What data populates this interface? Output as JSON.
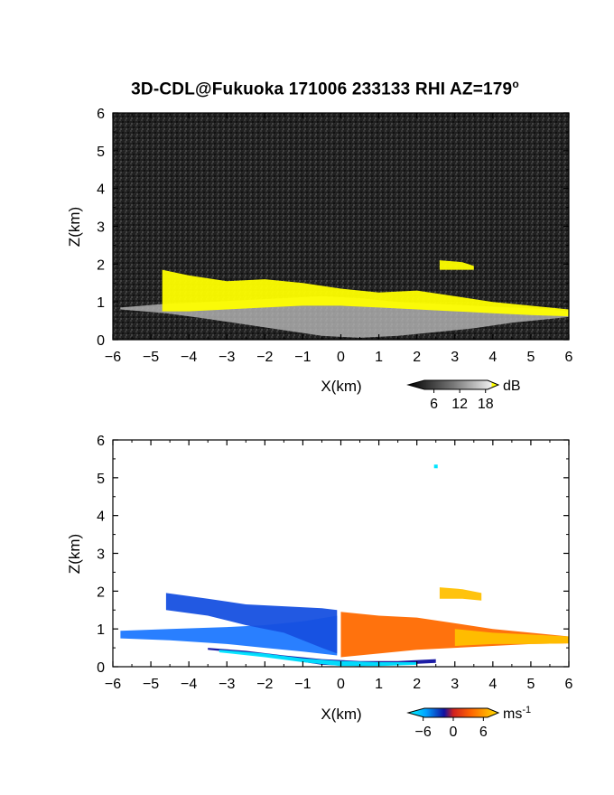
{
  "title": {
    "text": "3D-CDL@Fukuoka 171006 233133 RHI AZ=179",
    "superscript": "o"
  },
  "chart_data": [
    {
      "type": "heatmap",
      "panel": "reflectivity",
      "xlabel": "X(km)",
      "ylabel": "Z(km)",
      "xlim": [
        -6,
        6
      ],
      "ylim": [
        0,
        6
      ],
      "x_ticks": [
        -6,
        -5,
        -4,
        -3,
        -2,
        -1,
        0,
        1,
        2,
        3,
        4,
        5,
        6
      ],
      "y_ticks": [
        0,
        1,
        2,
        3,
        4,
        5,
        6
      ],
      "colorbar": {
        "unit": "dB",
        "ticks": [
          6,
          12,
          18
        ],
        "range": [
          0,
          21
        ],
        "colors": [
          "#1a1a1a",
          "#555555",
          "#999999",
          "#dddddd",
          "#ffff00"
        ]
      },
      "layers": [
        {
          "x": [
            -5.8,
            -4.6,
            -3.5,
            -2.5,
            -1.5,
            -0.5,
            0.5,
            1.5,
            2.5,
            3.5,
            4.5,
            5.5,
            6.0
          ],
          "z_bottom": [
            0.8,
            0.7,
            0.55,
            0.4,
            0.25,
            0.1,
            0.05,
            0.1,
            0.2,
            0.3,
            0.45,
            0.55,
            0.6
          ],
          "z_top": [
            0.85,
            0.95,
            1.0,
            1.05,
            1.1,
            1.15,
            1.1,
            1.0,
            0.95,
            0.9,
            0.85,
            0.8,
            0.75
          ],
          "value": 12
        },
        {
          "x": [
            -4.7,
            -4.0,
            -3.0,
            -2.0,
            -1.0,
            0.0,
            1.0,
            2.0,
            3.0,
            4.0,
            5.0,
            6.0
          ],
          "z_bottom": [
            0.75,
            0.75,
            0.8,
            0.85,
            0.9,
            0.9,
            0.85,
            0.8,
            0.75,
            0.7,
            0.65,
            0.62
          ],
          "z_top": [
            1.85,
            1.7,
            1.55,
            1.6,
            1.5,
            1.35,
            1.25,
            1.3,
            1.15,
            1.0,
            0.9,
            0.8
          ],
          "value": 20
        },
        {
          "x": [
            2.6,
            3.2,
            3.5
          ],
          "z_bottom": [
            1.85,
            1.85,
            1.85
          ],
          "z_top": [
            2.1,
            2.05,
            1.95
          ],
          "value": 20
        }
      ]
    },
    {
      "type": "heatmap",
      "panel": "doppler_velocity",
      "xlabel": "X(km)",
      "ylabel": "Z(km)",
      "xlim": [
        -6,
        6
      ],
      "ylim": [
        0,
        6
      ],
      "x_ticks": [
        -6,
        -5,
        -4,
        -3,
        -2,
        -1,
        0,
        1,
        2,
        3,
        4,
        5,
        6
      ],
      "y_ticks": [
        0,
        1,
        2,
        3,
        4,
        5,
        6
      ],
      "colorbar": {
        "unit": "ms",
        "unit_exponent": "-1",
        "ticks": [
          -6,
          0,
          6
        ],
        "range": [
          -9,
          9
        ],
        "colors": [
          "#00e5ff",
          "#0050ff",
          "#1010a0",
          "#d02020",
          "#ff6600",
          "#ffe000"
        ]
      },
      "layers": [
        {
          "x": [
            -5.8,
            -4.5,
            -3.0,
            -2.0,
            -1.0,
            -0.1
          ],
          "z_bottom": [
            0.75,
            0.7,
            0.6,
            0.5,
            0.4,
            0.3
          ],
          "z_top": [
            0.95,
            1.0,
            1.05,
            1.1,
            1.2,
            1.35
          ],
          "velocity": -7
        },
        {
          "x": [
            -4.6,
            -3.5,
            -2.5,
            -1.5,
            -0.5,
            -0.1
          ],
          "z_bottom": [
            1.5,
            1.35,
            1.1,
            0.9,
            0.5,
            0.35
          ],
          "z_top": [
            1.95,
            1.8,
            1.65,
            1.6,
            1.55,
            1.5
          ],
          "velocity": -4
        },
        {
          "x": [
            0.0,
            1.0,
            2.0,
            3.0,
            4.0,
            5.0,
            6.0
          ],
          "z_bottom": [
            0.25,
            0.35,
            0.45,
            0.5,
            0.55,
            0.6,
            0.62
          ],
          "z_top": [
            1.45,
            1.35,
            1.3,
            1.15,
            1.0,
            0.9,
            0.8
          ],
          "velocity": 3
        },
        {
          "x": [
            3.0,
            4.0,
            5.0,
            6.0
          ],
          "z_bottom": [
            0.55,
            0.6,
            0.6,
            0.62
          ],
          "z_top": [
            1.0,
            0.9,
            0.85,
            0.8
          ],
          "velocity": 7
        },
        {
          "x": [
            2.6,
            3.2,
            3.7
          ],
          "z_bottom": [
            1.8,
            1.8,
            1.75
          ],
          "z_top": [
            2.1,
            2.05,
            1.95
          ],
          "velocity": 6
        },
        {
          "x": [
            -3.5,
            -2.5,
            -1.5,
            -0.5,
            0.5,
            1.5,
            2.5
          ],
          "z_bottom": [
            0.45,
            0.35,
            0.2,
            0.05,
            0.02,
            0.05,
            0.1
          ],
          "z_top": [
            0.5,
            0.42,
            0.3,
            0.2,
            0.15,
            0.15,
            0.2
          ],
          "velocity": -1
        },
        {
          "x": [
            -3.2,
            -2.0,
            -1.0,
            0.0,
            1.0,
            2.0
          ],
          "z_bottom": [
            0.38,
            0.25,
            0.12,
            0.02,
            0.02,
            0.05
          ],
          "z_top": [
            0.45,
            0.35,
            0.22,
            0.15,
            0.12,
            0.12
          ],
          "velocity": -9
        }
      ],
      "points": [
        {
          "x": 2.5,
          "z": 5.3,
          "velocity": -9
        }
      ]
    }
  ]
}
